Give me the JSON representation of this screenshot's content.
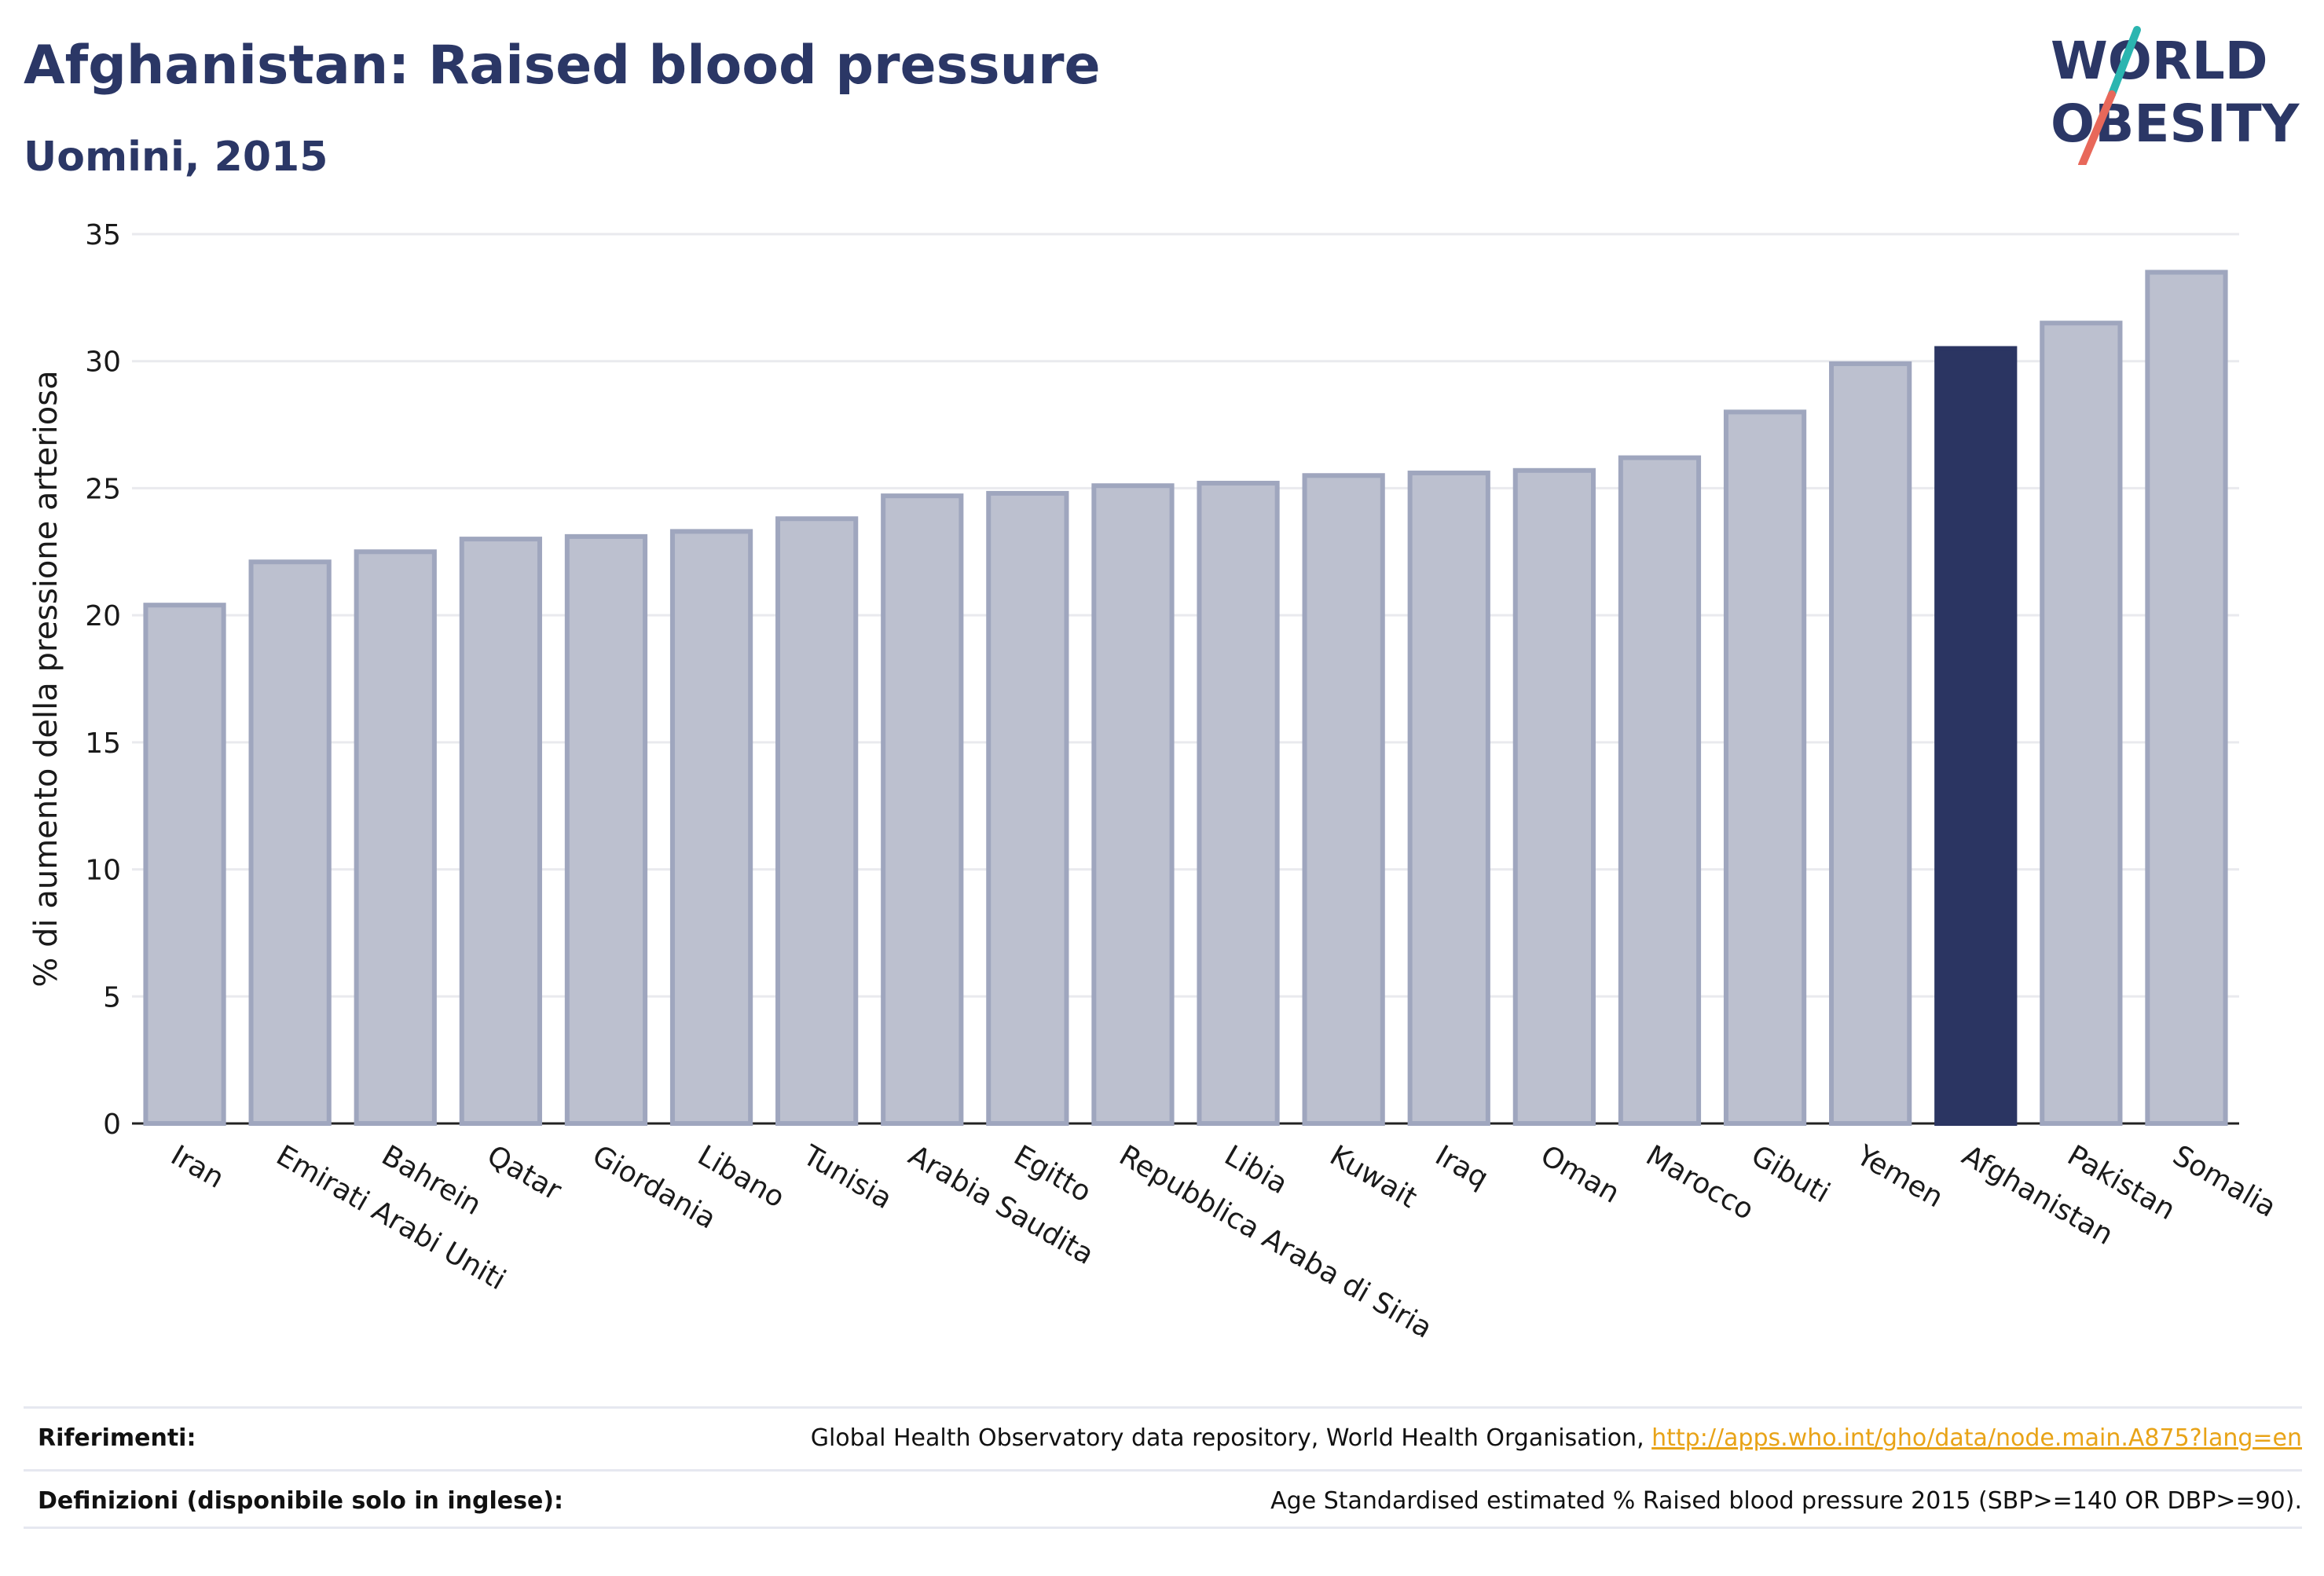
{
  "header": {
    "title": "Afghanistan: Raised blood pressure",
    "subtitle": "Uomini, 2015"
  },
  "logo": {
    "line1": "WORLD",
    "line2": "OBESITY",
    "accent1": "#2bb5b0",
    "accent2": "#e8685a"
  },
  "colors": {
    "bar": "#bcc0cf",
    "bar_border": "#9fa6be",
    "highlight": "#2b3562",
    "grid": "#e9eaee"
  },
  "chart_data": {
    "type": "bar",
    "title": "Afghanistan: Raised blood pressure",
    "subtitle": "Uomini, 2015",
    "ylabel": "% di aumento della pressione arteriosa",
    "xlabel": "",
    "ylim": [
      0,
      35
    ],
    "yticks": [
      0,
      5,
      10,
      15,
      20,
      25,
      30,
      35
    ],
    "grid": true,
    "highlight": "Afghanistan",
    "categories": [
      "Iran",
      "Emirati Arabi Uniti",
      "Bahrein",
      "Qatar",
      "Giordania",
      "Libano",
      "Tunisia",
      "Arabia Saudita",
      "Egitto",
      "Repubblica Araba di Siria",
      "Libia",
      "Kuwait",
      "Iraq",
      "Oman",
      "Marocco",
      "Gibuti",
      "Yemen",
      "Afghanistan",
      "Pakistan",
      "Somalia"
    ],
    "values": [
      20.4,
      22.1,
      22.5,
      23.0,
      23.1,
      23.3,
      23.8,
      24.7,
      24.8,
      25.1,
      25.2,
      25.5,
      25.6,
      25.7,
      26.2,
      28.0,
      29.9,
      30.5,
      31.5,
      33.5
    ]
  },
  "footer": {
    "ref_label": "Riferimenti:",
    "ref_text": "Global Health Observatory data repository, World Health Organisation, ",
    "ref_link": "http://apps.who.int/gho/data/node.main.A875?lang=en",
    "def_label": "Definizioni (disponibile solo in inglese):",
    "def_text": "Age Standardised estimated % Raised blood pressure 2015 (SBP>=140 OR DBP>=90)."
  }
}
